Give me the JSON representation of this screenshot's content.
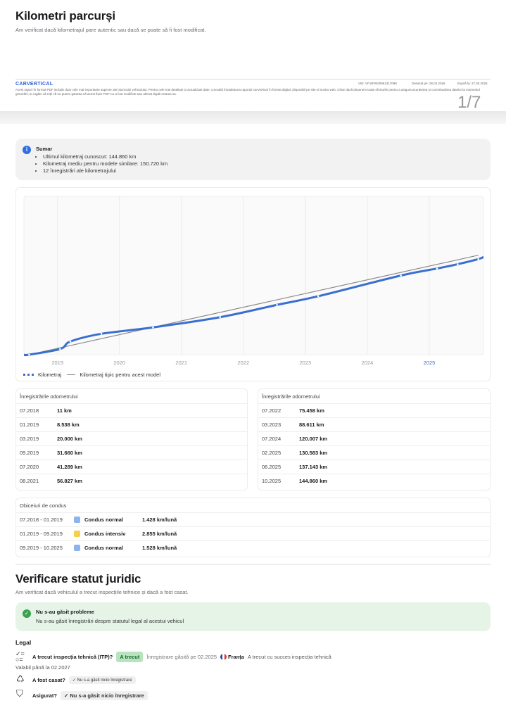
{
  "mileage": {
    "title": "Kilometri parcurși",
    "subtitle": "Am verificat dacă kilometrajul pare autentic sau dacă se poate să fi fost modificat."
  },
  "pdf_footer": {
    "logo": "CARVERTICAL",
    "vin": "VIN: VF1RFE00961317098",
    "generated": "Generat pe: 25.02.2026",
    "expires": "Expiră la: 27.03.2026",
    "disclaimer": "Acest raport în format PDF include doar cele mai importante aspecte ale istoricului vehiculului. Pentru cele mai detaliate și actualizate date, consultă întotdeauna raportul carVertical în format digital, disponibil pe site-ul nostru web. Chiar dacă depunem toate eforturile pentru a asigura acuratețea și corectitudinea datelor la momentul generării, te rugăm să reții că nu putem garanta că acest fișier PDF nu a fost modificat sau alterat după crearea sa.",
    "page": "1/7"
  },
  "summary": {
    "title": "Sumar",
    "items": [
      "Ultimul kilometraj cunoscut: 144.860 km",
      "Kilometraj mediu pentru modele similare: 150.720 km",
      "12 înregistrări ale kilometrajului"
    ],
    "icon": "info-icon"
  },
  "chart_data": {
    "type": "line",
    "x_ticks": [
      "2019",
      "2020",
      "2021",
      "2022",
      "2023",
      "2024",
      "2025"
    ],
    "highlight_tick": "2025",
    "xlim": [
      "2018-06",
      "2025-11"
    ],
    "ylim": [
      0,
      240000
    ],
    "grid": "vertical",
    "legend_position": "bottom-left",
    "series": [
      {
        "name": "Kilometraj",
        "color": "#3a6fd0",
        "x": [
          "2018-07",
          "2019-01",
          "2019-03",
          "2019-09",
          "2020-07",
          "2021-08",
          "2022-07",
          "2023-03",
          "2024-07",
          "2025-02",
          "2025-06",
          "2025-10"
        ],
        "y": [
          11,
          8538,
          20000,
          31660,
          41289,
          56827,
          75458,
          88611,
          120007,
          130583,
          137143,
          144860
        ]
      },
      {
        "name": "Kilometraj tipic pentru acest model",
        "color": "#8a8a8a",
        "x": [
          "2018-07",
          "2025-10"
        ],
        "y": [
          0,
          150720
        ]
      }
    ]
  },
  "records_left": {
    "header": "Înregistrările odometrului",
    "rows": [
      [
        "07.2018",
        "11 km"
      ],
      [
        "01.2019",
        "8.538 km"
      ],
      [
        "03.2019",
        "20.000 km"
      ],
      [
        "09.2019",
        "31.660 km"
      ],
      [
        "07.2020",
        "41.289 km"
      ],
      [
        "08.2021",
        "56.827 km"
      ]
    ]
  },
  "records_right": {
    "header": "Înregistrările odometrului",
    "rows": [
      [
        "07.2022",
        "75.458 km"
      ],
      [
        "03.2023",
        "88.611 km"
      ],
      [
        "07.2024",
        "120.007 km"
      ],
      [
        "02.2025",
        "130.583 km"
      ],
      [
        "06.2025",
        "137.143 km"
      ],
      [
        "10.2025",
        "144.860 km"
      ]
    ]
  },
  "habits": {
    "header": "Obiceiuri de condus",
    "rows": [
      {
        "period": "07.2018 - 01.2019",
        "type": "Condus normal",
        "rate": "1.428 km/lună",
        "color": "#8db4ef"
      },
      {
        "period": "01.2019 - 09.2019",
        "type": "Condus intensiv",
        "rate": "2.855 km/lună",
        "color": "#f5d04a"
      },
      {
        "period": "09.2019 - 10.2025",
        "type": "Condus normal",
        "rate": "1.528 km/lună",
        "color": "#8db4ef"
      }
    ]
  },
  "legal": {
    "title": "Verificare statut juridic",
    "subtitle": "Am verificat dacă vehiculul a trecut inspecțiile tehnice și dacă a fost casat.",
    "status_title": "Nu s-au găsit probleme",
    "status_text": "Nu s-au găsit înregistrări despre statutul legal al acestui vehicul",
    "section": "Legal",
    "itp_q": "A trecut inspecția tehnică (ITP)?",
    "itp_badge": "A trecut",
    "itp_found": "Înregistrare găsită pe 02.2025",
    "itp_country": "Franța",
    "itp_desc": "A trecut cu succes inspecția tehnică",
    "itp_valid": "Valabil până la 02.2027",
    "scrap_q": "A fost casat?",
    "scrap_a": "Nu s-a găsit nicio înregistrare",
    "insured_q": "Asigurat?",
    "insured_a": "Nu s-a găsit nicio înregistrare"
  }
}
